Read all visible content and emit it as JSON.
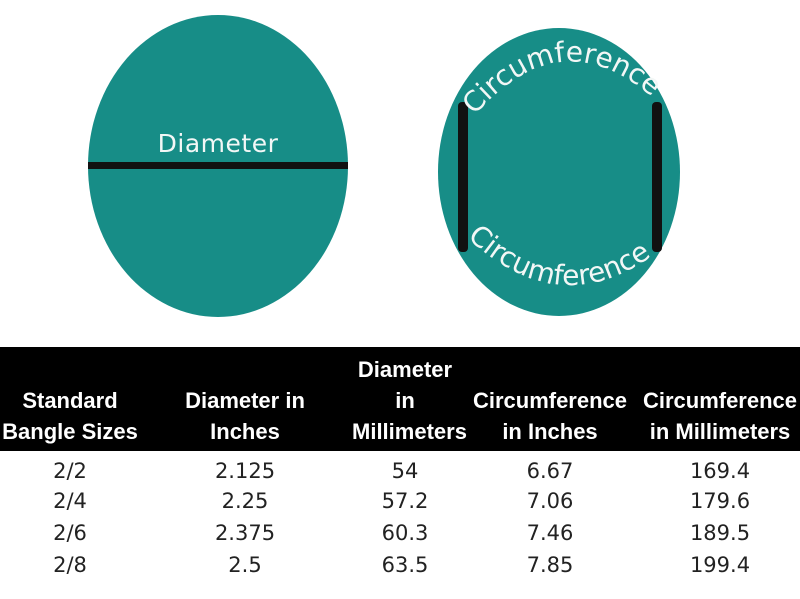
{
  "figure": {
    "diameter_label": "Diameter",
    "circumference_top_label": "Circumference",
    "circumference_bottom_label": "Circumference",
    "circle_color": "#178d87"
  },
  "table": {
    "headers": [
      [
        "Standard",
        "Bangle Sizes"
      ],
      [
        "Diameter in",
        "Inches"
      ],
      [
        "Diameter",
        "in",
        "Millimeters"
      ],
      [
        "Circumference",
        "in Inches"
      ],
      [
        "Circumference",
        "in Millimeters"
      ]
    ],
    "rows": [
      [
        "2/2",
        "2.125",
        "54",
        "6.67",
        "169.4"
      ],
      [
        "2/4",
        "2.25",
        "57.2",
        "7.06",
        "179.6"
      ],
      [
        "2/6",
        "2.375",
        "60.3",
        "7.46",
        "189.5"
      ],
      [
        "2/8",
        "2.5",
        "63.5",
        "7.85",
        "199.4"
      ]
    ]
  }
}
